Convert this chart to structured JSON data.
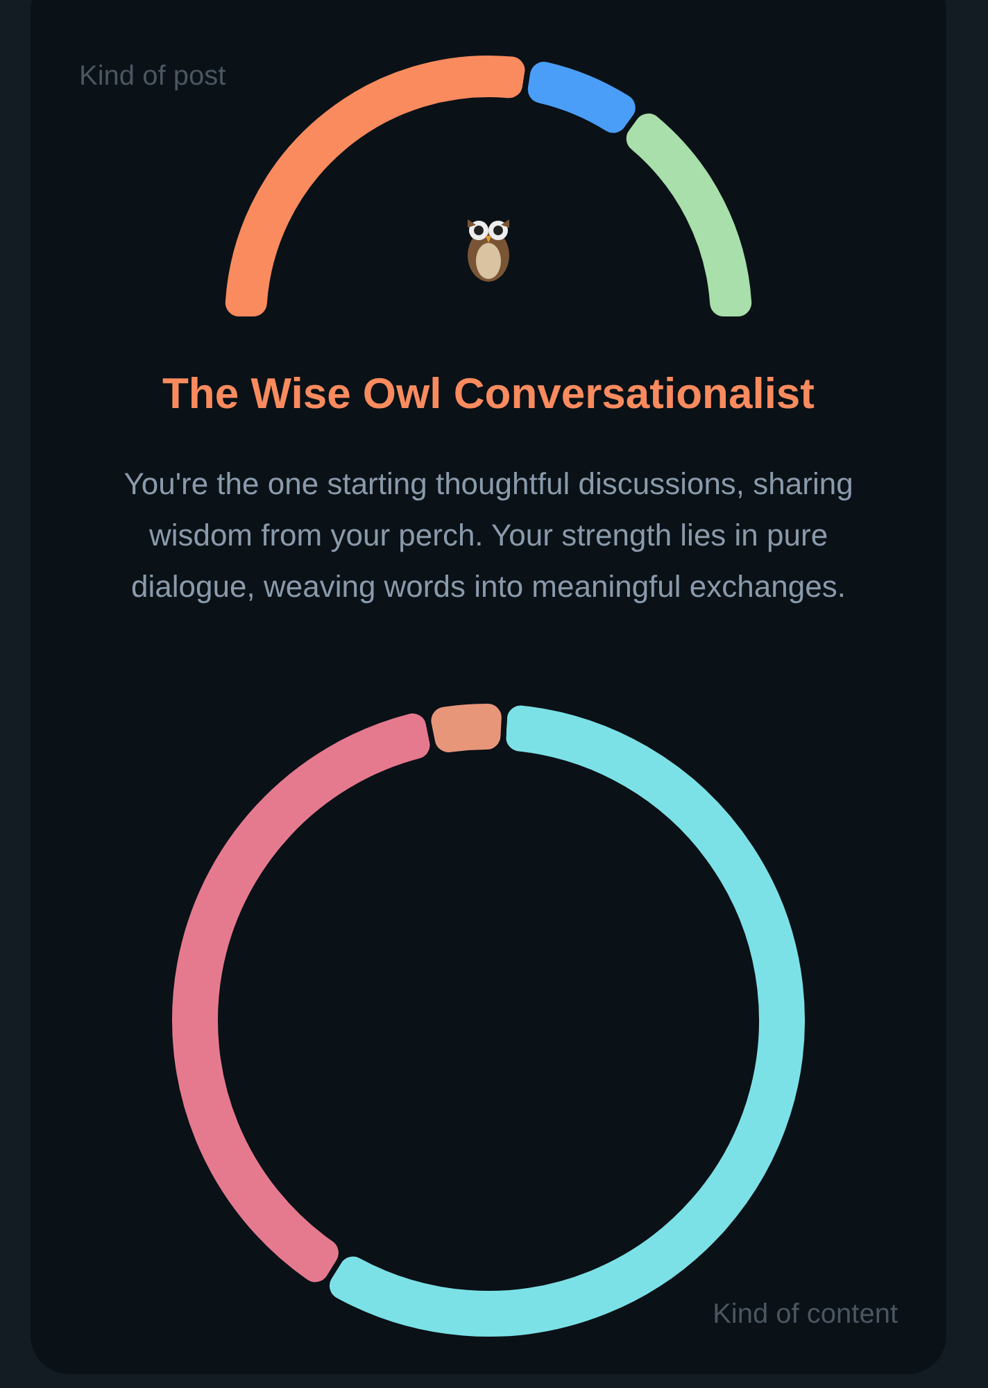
{
  "chart_data": [
    {
      "type": "donut",
      "title": "Kind of post",
      "annotations": [
        "The Wise Owl Conversationalist",
        "You're the one starting thoughtful discussions, sharing wisdom from your perch. Your strength lies in pure dialogue, weaving words into meaningful exchanges."
      ],
      "categories": [
        null,
        null,
        null
      ],
      "values": [
        55,
        15,
        30
      ],
      "colors": [
        "#f98b5e",
        "#4a9ef8",
        "#a9dfaa"
      ]
    },
    {
      "type": "donut",
      "title": "Kind of content",
      "categories": [
        null,
        null,
        null
      ],
      "values": [
        58,
        38,
        4
      ],
      "colors": [
        "#7ce1e6",
        "#e57a8f",
        "#e8967a"
      ]
    }
  ]
}
